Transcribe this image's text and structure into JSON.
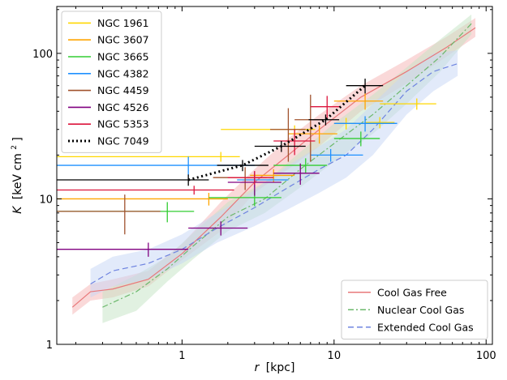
{
  "chart_data": {
    "type": "line",
    "xlabel_var": "r",
    "xlabel_unit": "[kpc]",
    "ylabel_var": "K",
    "ylabel_unit_prefix": "[keV cm",
    "ylabel_unit_sup": "2",
    "ylabel_unit_suffix": "]",
    "xscale": "log",
    "yscale": "log",
    "xlim": [
      0.15,
      110
    ],
    "ylim": [
      1,
      210
    ],
    "x_ticks": [
      {
        "value": 1,
        "label": "1"
      },
      {
        "value": 10,
        "label": "10"
      },
      {
        "value": 100,
        "label": "100"
      }
    ],
    "y_ticks": [
      {
        "value": 1,
        "label": "1"
      },
      {
        "value": 10,
        "label": "10"
      },
      {
        "value": 100,
        "label": "100"
      }
    ],
    "grid": false,
    "legend_top_left": [
      {
        "name": "NGC 1961",
        "color": "#ffd700",
        "style": "solid"
      },
      {
        "name": "NGC 3607",
        "color": "#ffa500",
        "style": "solid"
      },
      {
        "name": "NGC 3665",
        "color": "#32cd32",
        "style": "solid"
      },
      {
        "name": "NGC 4382",
        "color": "#1e90ff",
        "style": "solid"
      },
      {
        "name": "NGC 4459",
        "color": "#a0522d",
        "style": "solid"
      },
      {
        "name": "NGC 4526",
        "color": "#800080",
        "style": "solid"
      },
      {
        "name": "NGC 5353",
        "color": "#dc143c",
        "style": "solid"
      },
      {
        "name": "NGC 7049",
        "color": "#000000",
        "style": "dotted"
      }
    ],
    "legend_bottom_right": [
      {
        "name": "Cool Gas Free",
        "color": "#e8787a",
        "style": "solid"
      },
      {
        "name": "Nuclear Cool Gas",
        "color": "#6cb86c",
        "style": "dashdot"
      },
      {
        "name": "Extended Cool Gas",
        "color": "#6f84e0",
        "style": "dashed"
      }
    ],
    "bands": [
      {
        "name": "Cool Gas Free",
        "color": "#e8787a",
        "band_color": "#f5b3b3",
        "style": "solid",
        "x": [
          0.19,
          0.25,
          0.35,
          0.6,
          1.0,
          1.8,
          3.0,
          5.0,
          8.0,
          15.0,
          30.0,
          55.0,
          85.0
        ],
        "y": [
          1.8,
          2.3,
          2.4,
          2.8,
          4.2,
          7.5,
          13.0,
          20.0,
          30.0,
          50.0,
          75.0,
          110.0,
          150.0
        ],
        "lo": [
          1.6,
          2.0,
          2.1,
          2.5,
          3.8,
          6.0,
          11.0,
          16.0,
          23.0,
          40.0,
          62.0,
          95.0,
          130.0
        ],
        "hi": [
          2.1,
          2.6,
          2.8,
          3.2,
          4.9,
          9.5,
          16.0,
          26.0,
          38.0,
          60.0,
          90.0,
          130.0,
          175.0
        ]
      },
      {
        "name": "Nuclear Cool Gas",
        "color": "#6cb86c",
        "band_color": "#c3e3c3",
        "style": "dashdot",
        "x": [
          0.3,
          0.5,
          0.8,
          1.2,
          2.0,
          3.5,
          6.0,
          10.0,
          18.0,
          30.0,
          50.0,
          80.0
        ],
        "y": [
          1.8,
          2.3,
          3.3,
          4.8,
          7.5,
          10.0,
          16.0,
          24.0,
          38.0,
          60.0,
          95.0,
          160.0
        ],
        "lo": [
          1.4,
          1.7,
          2.7,
          3.9,
          6.0,
          8.0,
          12.0,
          18.0,
          28.0,
          45.0,
          75.0,
          135.0
        ],
        "hi": [
          2.3,
          3.0,
          4.0,
          5.9,
          9.5,
          13.0,
          21.0,
          33.0,
          52.0,
          80.0,
          125.0,
          185.0
        ]
      },
      {
        "name": "Extended Cool Gas",
        "color": "#6f84e0",
        "band_color": "#c5d5f6",
        "style": "dashed",
        "x": [
          0.25,
          0.35,
          0.6,
          1.0,
          1.7,
          3.0,
          5.0,
          8.0,
          12.0,
          18.0,
          30.0,
          45.0,
          65.0
        ],
        "y": [
          2.6,
          3.2,
          3.6,
          4.5,
          6.3,
          8.7,
          12.0,
          16.0,
          20.0,
          30.0,
          55.0,
          75.0,
          85.0
        ],
        "lo": [
          2.1,
          2.5,
          2.8,
          3.6,
          5.0,
          6.5,
          8.5,
          11.0,
          14.0,
          20.0,
          38.0,
          55.0,
          70.0
        ],
        "hi": [
          3.3,
          4.0,
          4.5,
          5.7,
          8.0,
          11.5,
          17.0,
          23.0,
          30.0,
          45.0,
          75.0,
          100.0,
          105.0
        ]
      }
    ],
    "series": [
      {
        "name": "NGC 1961",
        "color": "#ffd700",
        "x": [
          1.8,
          5.5,
          12.0,
          20.0,
          35.0
        ],
        "y": [
          19.5,
          30.0,
          33.0,
          33.5,
          45.0
        ],
        "xerr": [
          [
            1.65,
            3.7,
            2.0,
            4.0,
            15.0
          ],
          [
            0.6,
            2.0,
            2.0,
            5.0,
            12.0
          ]
        ],
        "yerr": [
          [
            1.5,
            2.0,
            3.0,
            3.0,
            4.0
          ],
          [
            1.5,
            2.0,
            3.0,
            3.0,
            4.0
          ]
        ]
      },
      {
        "name": "NGC 3607",
        "color": "#ffa500",
        "x": [
          1.5,
          4.0,
          8.0,
          16.0
        ],
        "y": [
          10.0,
          14.5,
          28.0,
          47.0
        ],
        "xerr": [
          [
            1.35,
            1.2,
            3.0,
            6.0
          ],
          [
            0.5,
            1.5,
            2.5,
            5.0
          ]
        ],
        "yerr": [
          [
            1.0,
            1.5,
            4.0,
            6.0
          ],
          [
            1.0,
            1.5,
            4.0,
            6.0
          ]
        ]
      },
      {
        "name": "NGC 3665",
        "color": "#32cd32",
        "x": [
          0.8,
          3.0,
          6.5,
          15.0
        ],
        "y": [
          8.2,
          10.2,
          17.0,
          26.0
        ],
        "xerr": [
          [
            0.65,
            1.5,
            2.5,
            5.0
          ],
          [
            0.4,
            1.5,
            2.5,
            5.0
          ]
        ],
        "yerr": [
          [
            1.3,
            1.3,
            2.0,
            3.0
          ],
          [
            1.3,
            1.3,
            2.0,
            3.0
          ]
        ]
      },
      {
        "name": "NGC 4382",
        "color": "#1e90ff",
        "x": [
          1.1,
          3.0,
          9.5,
          16.0
        ],
        "y": [
          17.0,
          13.5,
          20.0,
          33.0
        ],
        "xerr": [
          [
            0.95,
            0.7,
            2.5,
            6.0
          ],
          [
            1.9,
            2.0,
            6.0,
            10.0
          ]
        ],
        "yerr": [
          [
            2.5,
            1.5,
            2.0,
            4.0
          ],
          [
            2.5,
            1.5,
            2.0,
            4.0
          ]
        ]
      },
      {
        "name": "NGC 4459",
        "color": "#a0522d",
        "x": [
          0.42,
          2.6,
          5.0,
          7.0
        ],
        "y": [
          8.2,
          14.0,
          30.0,
          35.0
        ],
        "xerr": [
          [
            0.27,
            1.0,
            1.2,
            1.5
          ],
          [
            0.3,
            1.0,
            1.5,
            1.5
          ]
        ],
        "yerr": [
          [
            2.5,
            2.5,
            12.0,
            17.0
          ],
          [
            2.5,
            2.5,
            12.0,
            17.0
          ]
        ]
      },
      {
        "name": "NGC 4526",
        "color": "#800080",
        "x": [
          0.6,
          1.8,
          3.0,
          6.0
        ],
        "y": [
          4.5,
          6.3,
          13.0,
          15.0
        ],
        "xerr": [
          [
            0.45,
            0.7,
            1.0,
            2.0
          ],
          [
            0.5,
            0.9,
            1.5,
            2.0
          ]
        ],
        "yerr": [
          [
            0.5,
            0.7,
            2.5,
            2.5
          ],
          [
            0.5,
            0.7,
            2.5,
            2.5
          ]
        ]
      },
      {
        "name": "NGC 5353",
        "color": "#dc143c",
        "x": [
          1.2,
          3.0,
          5.5,
          9.0
        ],
        "y": [
          11.5,
          14.0,
          25.0,
          43.0
        ],
        "xerr": [
          [
            1.05,
            1.0,
            1.5,
            2.0
          ],
          [
            1.0,
            1.0,
            2.0,
            2.0
          ]
        ],
        "yerr": [
          [
            0.8,
            1.5,
            5.0,
            8.0
          ],
          [
            0.8,
            1.5,
            5.0,
            8.0
          ]
        ]
      },
      {
        "name": "NGC 7049",
        "color": "#000000",
        "dotted": true,
        "x": [
          1.1,
          2.5,
          4.5,
          8.8,
          16.0
        ],
        "y": [
          13.5,
          17.0,
          23.0,
          35.0,
          60.0
        ],
        "xerr": [
          [
            0.95,
            0.8,
            1.5,
            2.0,
            4.0
          ],
          [
            0.4,
            1.2,
            2.0,
            2.0,
            5.0
          ]
        ],
        "yerr": [
          [
            1.2,
            1.5,
            2.0,
            3.0,
            7.0
          ],
          [
            1.2,
            1.5,
            2.0,
            3.0,
            7.0
          ]
        ]
      }
    ]
  }
}
